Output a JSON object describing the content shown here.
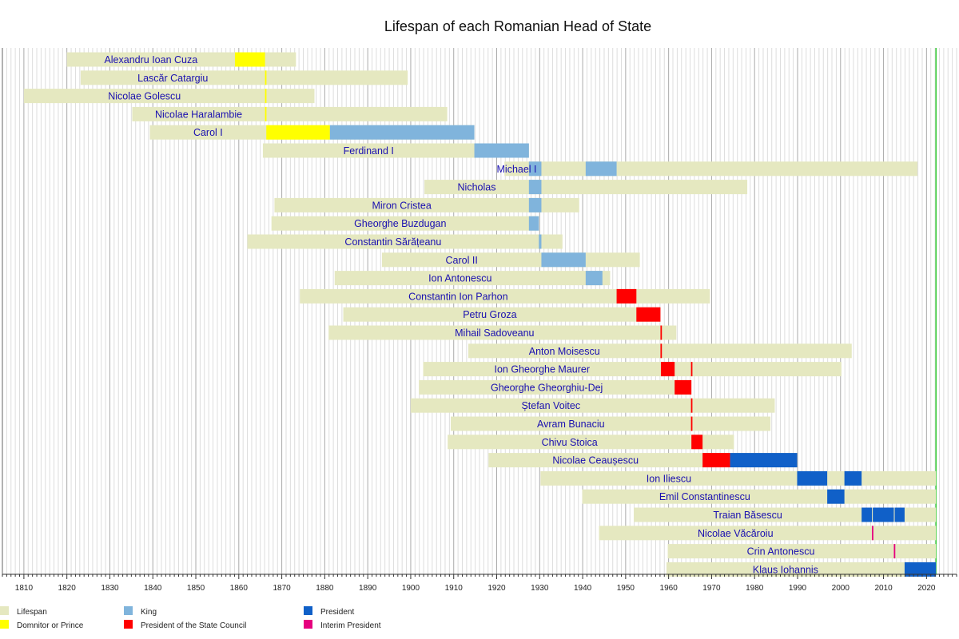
{
  "chart_data": {
    "type": "timeline",
    "title": "Lifespan of each Romanian Head of State",
    "xlim": [
      1805,
      2027
    ],
    "x_ticks": [
      1810,
      1820,
      1830,
      1840,
      1850,
      1860,
      1870,
      1880,
      1890,
      1900,
      1910,
      1920,
      1930,
      1940,
      1950,
      1960,
      1970,
      1980,
      1990,
      2000,
      2010,
      2020
    ],
    "current_year_marker": 2022.2,
    "colors": {
      "lifespan": "#e5e8c0",
      "dom": "#ffff00",
      "king": "#80b4dc",
      "psc": "#ff0000",
      "pres": "#1060c8",
      "interim": "#e6007e",
      "label": "#1a10b0",
      "grid_major": "#aaaaaa",
      "grid_minor": "#dddddd",
      "today": "#00c000"
    },
    "legend": [
      {
        "key": "lifespan",
        "label": "Lifespan"
      },
      {
        "key": "dom",
        "label": "Domnitor or Prince"
      },
      {
        "key": "king",
        "label": "King"
      },
      {
        "key": "psc",
        "label": "President of the State Council"
      },
      {
        "key": "pres",
        "label": "President"
      },
      {
        "key": "interim",
        "label": "Interim President"
      }
    ],
    "rows": [
      {
        "name": "Alexandru Ioan Cuza",
        "life": [
          1820.0,
          1873.3
        ],
        "terms": [
          {
            "role": "dom",
            "from": 1859.1,
            "to": 1866.1
          }
        ]
      },
      {
        "name": "Lascăr Catargiu",
        "life": [
          1823.2,
          1899.3
        ],
        "terms": [
          {
            "role": "dom",
            "from": 1866.1,
            "to": 1866.3
          }
        ]
      },
      {
        "name": "Nicolae Golescu",
        "life": [
          1810.0,
          1877.6
        ],
        "terms": [
          {
            "role": "dom",
            "from": 1866.1,
            "to": 1866.3
          }
        ]
      },
      {
        "name": "Nicolae Haralambie",
        "life": [
          1835.2,
          1908.5
        ],
        "terms": [
          {
            "role": "dom",
            "from": 1866.1,
            "to": 1866.3
          }
        ]
      },
      {
        "name": "Carol I",
        "life": [
          1839.3,
          1914.8
        ],
        "terms": [
          {
            "role": "dom",
            "from": 1866.4,
            "to": 1881.2
          },
          {
            "role": "king",
            "from": 1881.2,
            "to": 1914.8
          }
        ]
      },
      {
        "name": "Ferdinand I",
        "life": [
          1865.6,
          1927.5
        ],
        "terms": [
          {
            "role": "king",
            "from": 1914.8,
            "to": 1927.5
          }
        ]
      },
      {
        "name": "Michael I",
        "life": [
          1921.8,
          2017.9
        ],
        "terms": [
          {
            "role": "king",
            "from": 1927.5,
            "to": 1930.4
          },
          {
            "role": "king",
            "from": 1940.7,
            "to": 1947.9
          }
        ]
      },
      {
        "name": "Nicholas",
        "life": [
          1903.2,
          1978.3
        ],
        "terms": [
          {
            "role": "king",
            "from": 1927.5,
            "to": 1930.4
          }
        ]
      },
      {
        "name": "Miron Cristea",
        "life": [
          1868.3,
          1939.2
        ],
        "terms": [
          {
            "role": "king",
            "from": 1927.5,
            "to": 1930.4
          }
        ]
      },
      {
        "name": "Gheorghe Buzdugan",
        "life": [
          1867.6,
          1929.8
        ],
        "terms": [
          {
            "role": "king",
            "from": 1927.5,
            "to": 1929.8
          }
        ]
      },
      {
        "name": "Constantin Sărățeanu",
        "life": [
          1862.0,
          1935.3
        ],
        "terms": [
          {
            "role": "king",
            "from": 1929.8,
            "to": 1930.4
          }
        ]
      },
      {
        "name": "Carol II",
        "life": [
          1893.3,
          1953.3
        ],
        "terms": [
          {
            "role": "king",
            "from": 1930.4,
            "to": 1940.7
          }
        ]
      },
      {
        "name": "Ion Antonescu",
        "life": [
          1882.3,
          1946.4
        ],
        "terms": [
          {
            "role": "king",
            "from": 1940.7,
            "to": 1944.6
          }
        ]
      },
      {
        "name": "Constantin Ion Parhon",
        "life": [
          1874.2,
          1969.6
        ],
        "terms": [
          {
            "role": "psc",
            "from": 1947.9,
            "to": 1952.5
          }
        ]
      },
      {
        "name": "Petru Groza",
        "life": [
          1884.3,
          1958.1
        ],
        "terms": [
          {
            "role": "psc",
            "from": 1952.5,
            "to": 1958.1
          }
        ]
      },
      {
        "name": "Mihail Sadoveanu",
        "life": [
          1880.9,
          1961.8
        ],
        "terms": [
          {
            "role": "psc",
            "from": 1958.1,
            "to": 1958.3
          }
        ]
      },
      {
        "name": "Anton Moisescu",
        "life": [
          1913.4,
          2002.6
        ],
        "terms": [
          {
            "role": "psc",
            "from": 1958.1,
            "to": 1958.3
          }
        ]
      },
      {
        "name": "Ion Gheorghe Maurer",
        "life": [
          1902.9,
          2000.2
        ],
        "terms": [
          {
            "role": "psc",
            "from": 1958.2,
            "to": 1961.4
          },
          {
            "role": "psc",
            "from": 1965.2,
            "to": 1965.4
          }
        ]
      },
      {
        "name": "Gheorghe Gheorghiu-Dej",
        "life": [
          1901.9,
          1965.3
        ],
        "terms": [
          {
            "role": "psc",
            "from": 1961.4,
            "to": 1965.3
          }
        ]
      },
      {
        "name": "Ștefan Voitec",
        "life": [
          1900.0,
          1984.7
        ],
        "terms": [
          {
            "role": "psc",
            "from": 1965.2,
            "to": 1965.4
          }
        ]
      },
      {
        "name": "Avram Bunaciu",
        "life": [
          1909.3,
          1983.7
        ],
        "terms": [
          {
            "role": "psc",
            "from": 1965.2,
            "to": 1965.4
          }
        ]
      },
      {
        "name": "Chivu Stoica",
        "life": [
          1908.6,
          1975.2
        ],
        "terms": [
          {
            "role": "psc",
            "from": 1965.3,
            "to": 1967.9
          }
        ]
      },
      {
        "name": "Nicolae Ceaușescu",
        "life": [
          1918.1,
          1989.9
        ],
        "terms": [
          {
            "role": "psc",
            "from": 1967.9,
            "to": 1974.3
          },
          {
            "role": "pres",
            "from": 1974.3,
            "to": 1989.9
          }
        ]
      },
      {
        "name": "Ion Iliescu",
        "life": [
          1930.2,
          2022.2
        ],
        "terms": [
          {
            "role": "pres",
            "from": 1989.9,
            "to": 1996.9
          },
          {
            "role": "pres",
            "from": 2000.9,
            "to": 2004.9
          }
        ]
      },
      {
        "name": "Emil Constantinescu",
        "life": [
          1939.9,
          2022.2
        ],
        "terms": [
          {
            "role": "pres",
            "from": 1996.9,
            "to": 2000.9
          }
        ]
      },
      {
        "name": "Traian Băsescu",
        "life": [
          1951.9,
          2022.2
        ],
        "terms": [
          {
            "role": "pres",
            "from": 2004.9,
            "to": 2007.3
          },
          {
            "role": "pres",
            "from": 2007.5,
            "to": 2012.4
          },
          {
            "role": "pres",
            "from": 2012.6,
            "to": 2014.9
          }
        ]
      },
      {
        "name": "Nicolae Văcăroiu",
        "life": [
          1943.8,
          2022.2
        ],
        "terms": [
          {
            "role": "interim",
            "from": 2007.3,
            "to": 2007.5
          }
        ]
      },
      {
        "name": "Crin Antonescu",
        "life": [
          1959.8,
          2022.2
        ],
        "terms": [
          {
            "role": "interim",
            "from": 2012.4,
            "to": 2012.6
          }
        ]
      },
      {
        "name": "Klaus Iohannis",
        "life": [
          1959.5,
          2022.2
        ],
        "terms": [
          {
            "role": "pres",
            "from": 2014.9,
            "to": 2022.2
          }
        ]
      }
    ]
  }
}
